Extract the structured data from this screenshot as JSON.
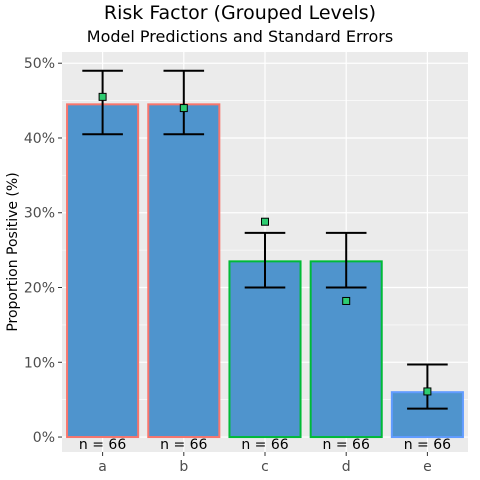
{
  "chart_data": {
    "type": "bar",
    "title": "Risk Factor (Grouped Levels)",
    "subtitle": "Model Predictions and Standard Errors",
    "xlabel": "",
    "ylabel": "Proportion Positive (%)",
    "ylim": [
      -2,
      51.5
    ],
    "yticks": [
      0,
      10,
      20,
      30,
      40,
      50
    ],
    "ytick_labels": [
      "0%",
      "10%",
      "20%",
      "30%",
      "40%",
      "50%"
    ],
    "grid": true,
    "categories": [
      "a",
      "b",
      "c",
      "d",
      "e"
    ],
    "values": [
      44.5,
      44.5,
      23.5,
      23.5,
      6.0
    ],
    "error_low": [
      40.5,
      40.5,
      20.0,
      20.0,
      3.8
    ],
    "error_high": [
      49.0,
      49.0,
      27.3,
      27.3,
      9.7
    ],
    "predicted": [
      45.5,
      44.0,
      28.8,
      18.2,
      6.1
    ],
    "counts": [
      "n = 66",
      "n = 66",
      "n = 66",
      "n = 66",
      "n = 66"
    ],
    "bar_fill": "#4F94CD",
    "bar_outline": [
      "#F8766D",
      "#F8766D",
      "#00BA38",
      "#00BA38",
      "#619CFF"
    ],
    "marker_fill": "#2ECC71",
    "panel_background": "#EBEBEB",
    "grid_color": "#FFFFFF"
  }
}
